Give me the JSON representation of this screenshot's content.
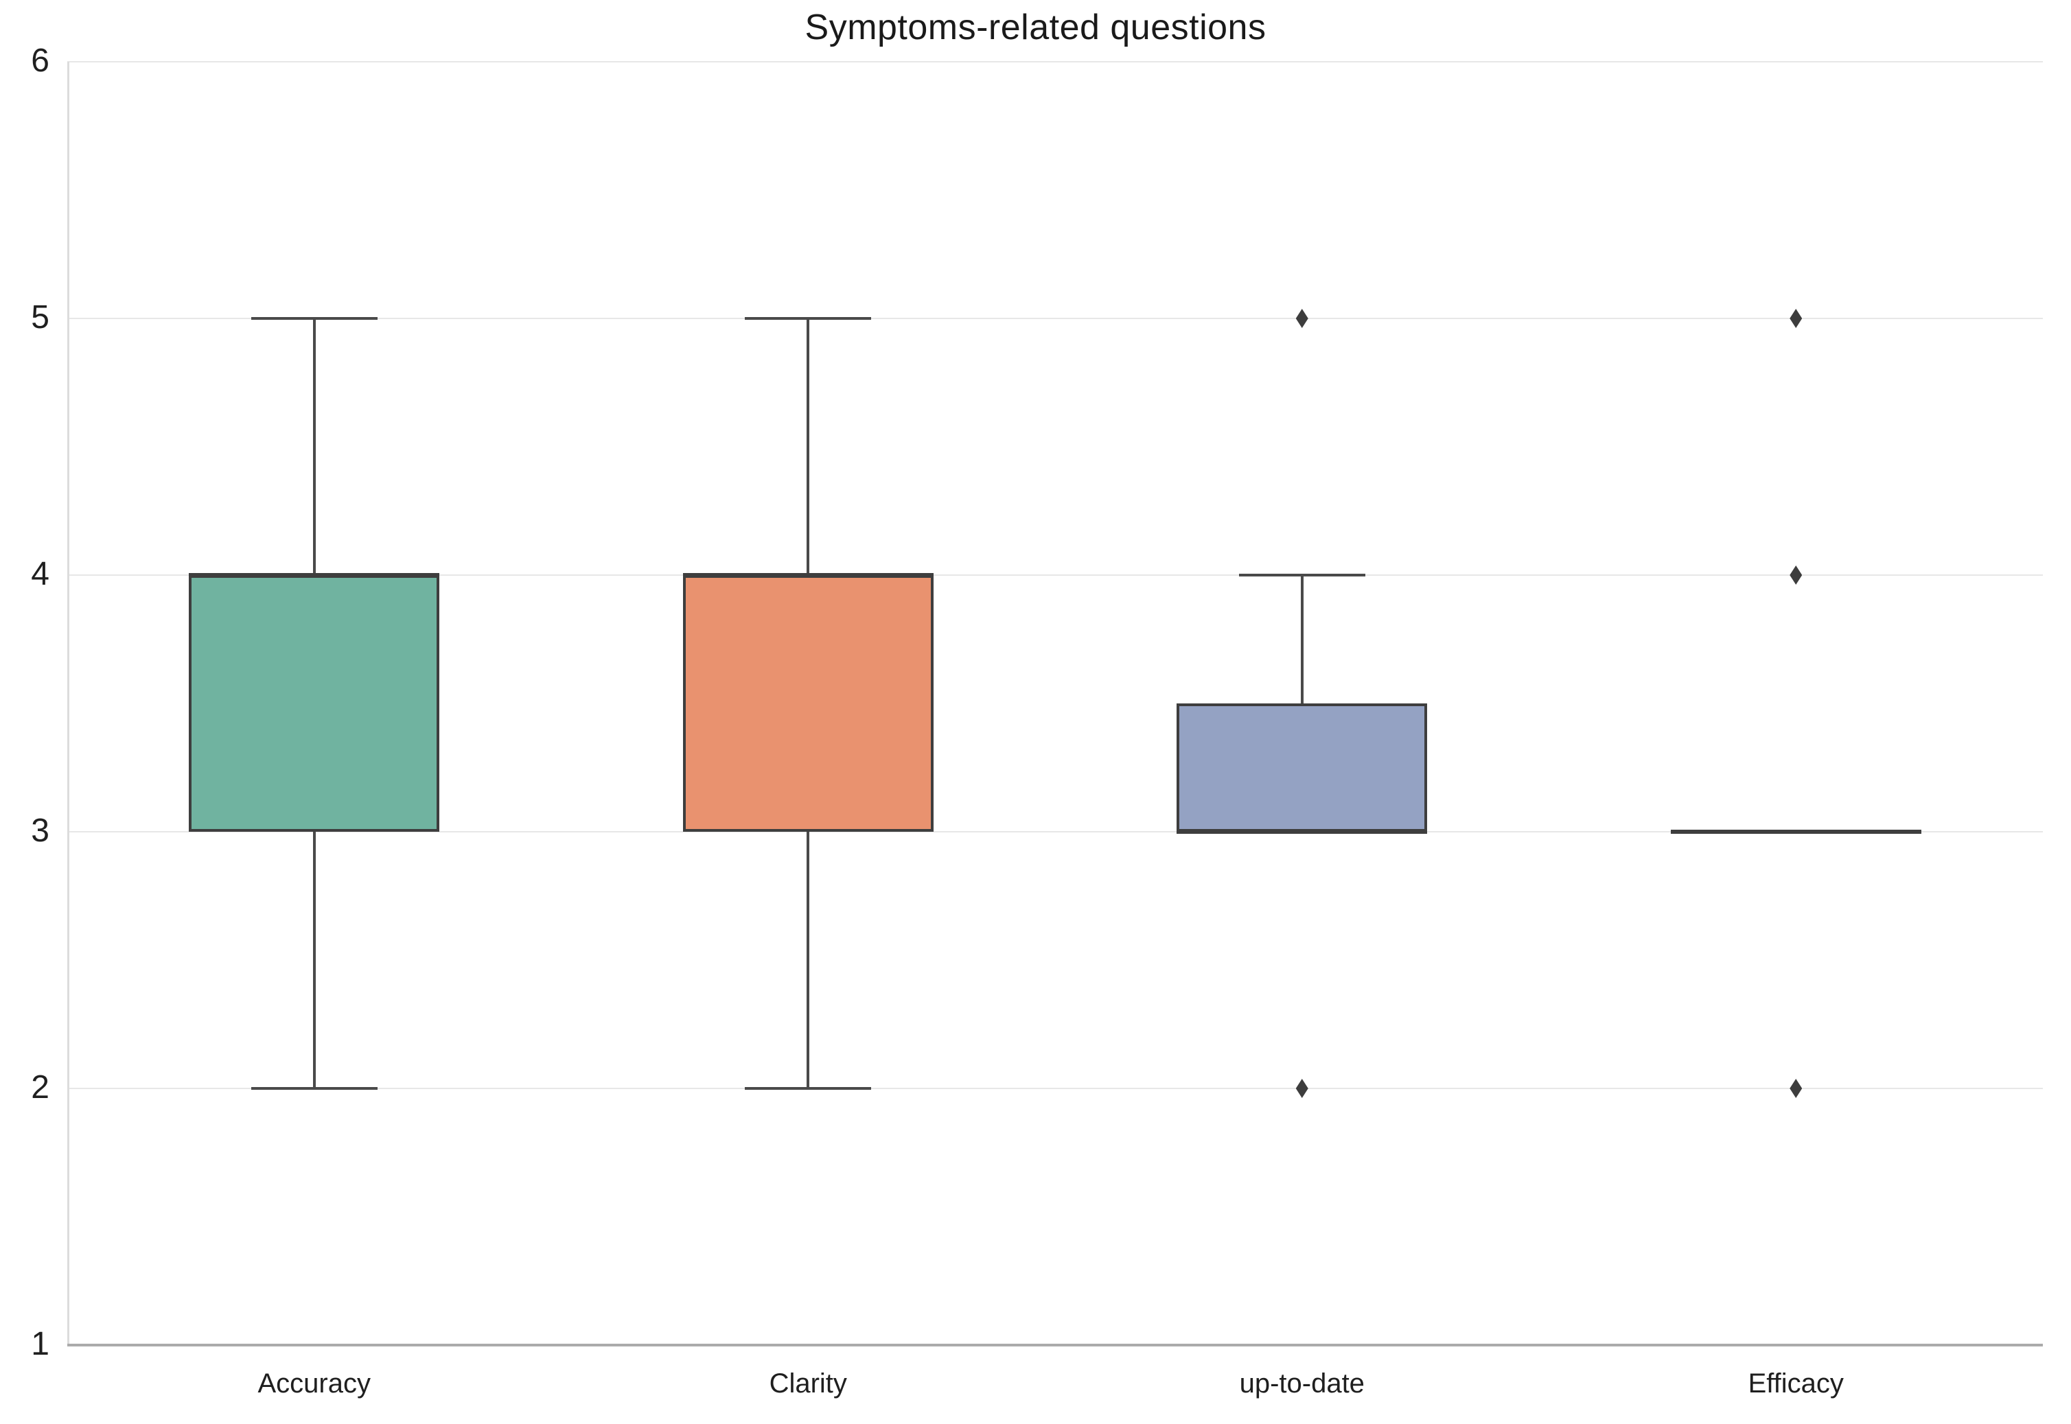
{
  "title": "Symptoms-related questions",
  "chart_data": {
    "type": "boxplot",
    "title": "Symptoms-related questions",
    "xlabel": "",
    "ylabel": "",
    "categories": [
      "Accuracy",
      "Clarity",
      "up-to-date",
      "Efficacy"
    ],
    "ylim": [
      1,
      6
    ],
    "yticks": [
      1,
      2,
      3,
      4,
      5,
      6
    ],
    "grid": "horizontal",
    "legend": "none",
    "series": [
      {
        "name": "Accuracy",
        "whisker_low": 2,
        "q1": 3,
        "median": 4,
        "q3": 4,
        "whisker_high": 5,
        "outliers": [],
        "fill": "#70b3a0"
      },
      {
        "name": "Clarity",
        "whisker_low": 2,
        "q1": 3,
        "median": 4,
        "q3": 4,
        "whisker_high": 5,
        "outliers": [],
        "fill": "#e9926f"
      },
      {
        "name": "up-to-date",
        "whisker_low": 3,
        "q1": 3,
        "median": 3,
        "q3": 3.5,
        "whisker_high": 4,
        "outliers": [
          5,
          2
        ],
        "fill": "#94a2c3"
      },
      {
        "name": "Efficacy",
        "whisker_low": 3,
        "q1": 3,
        "median": 3,
        "q3": 3,
        "whisker_high": 3,
        "outliers": [
          5,
          4,
          2
        ],
        "fill": null
      }
    ],
    "colors": {
      "box_edge": "#3e3e3e",
      "whisker": "#4a4a4a",
      "outlier_marker": "#3d3d3d",
      "gridline": "#e7e7e7",
      "bottom_axis_line": "#ababab",
      "left_axis_line": "#dcdcdc",
      "text": "#1f1f1f",
      "background": "#ffffff"
    },
    "outlier_marker_shape": "diamond"
  }
}
